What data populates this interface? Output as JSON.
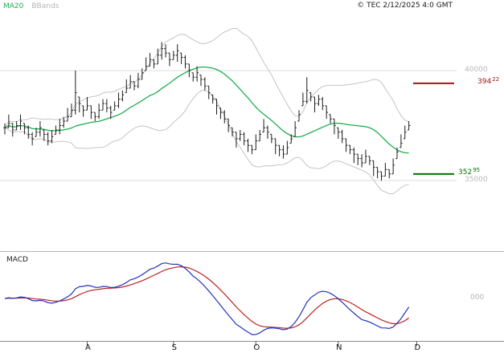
{
  "header": {
    "legend": [
      {
        "label": "MA20",
        "color": "#1fae4e"
      },
      {
        "label": "BBands",
        "color": "#b5b5b5"
      }
    ],
    "copyright": "© TEC 2/12/2025 4:0 GMT"
  },
  "price_axis": {
    "gridline_labels": [
      {
        "text": "40000",
        "value": 400.0
      },
      {
        "text": "35000",
        "value": 350.0
      }
    ],
    "levels": [
      {
        "name": "upper-level",
        "int": "394",
        "dec": "22",
        "value": 394.22,
        "color": "#aa1111"
      },
      {
        "name": "lower-level",
        "int": "352",
        "dec": "95",
        "value": 352.95,
        "color": "#007700"
      }
    ]
  },
  "macd_panel": {
    "label": "MACD",
    "zero_label": "000"
  },
  "x_axis": {
    "ticks": [
      {
        "label": "A",
        "index": 21
      },
      {
        "label": "S",
        "index": 43
      },
      {
        "label": "O",
        "index": 64
      },
      {
        "label": "N",
        "index": 85
      },
      {
        "label": "D",
        "index": 105
      }
    ]
  },
  "colors": {
    "bar": "#1c1c1c",
    "ma20": "#1fae4e",
    "bollinger": "#c4c4c4",
    "gridline": "#dcdcdc",
    "macd_line": "#2233bb",
    "macd_signal": "#bb2222",
    "panel_border": "#b3b3b3",
    "axis_line": "#8a8a8a",
    "tick": "#555555"
  },
  "chart_data": [
    {
      "type": "ohlc",
      "title": "",
      "xlabel": "",
      "ylabel": "",
      "y_gridlines": [
        400.0,
        350.0
      ],
      "y_gridline_labels": [
        "40000",
        "35000"
      ],
      "levels": [
        394.22,
        352.95
      ],
      "overlays": [
        {
          "name": "MA20",
          "period": 20
        },
        {
          "name": "BBands",
          "period": 20,
          "stdev_mult": 2
        }
      ],
      "close": [
        374,
        376,
        373,
        375,
        377,
        374,
        371,
        369,
        372,
        374,
        371,
        368,
        370,
        373,
        375,
        377,
        379,
        382,
        390,
        385,
        382,
        384,
        381,
        379,
        382,
        385,
        383,
        381,
        384,
        387,
        389,
        392,
        395,
        393,
        396,
        399,
        402,
        405,
        403,
        407,
        410,
        408,
        405,
        407,
        409,
        406,
        403,
        400,
        397,
        399,
        396,
        393,
        390,
        387,
        384,
        381,
        378,
        375,
        372,
        369,
        371,
        368,
        366,
        364,
        368,
        371,
        374,
        372,
        369,
        366,
        364,
        362,
        365,
        369,
        374,
        380,
        386,
        391,
        388,
        385,
        387,
        384,
        381,
        378,
        375,
        372,
        369,
        366,
        364,
        362,
        360,
        358,
        361,
        359,
        356,
        354,
        352,
        355,
        353,
        357,
        363,
        367,
        372,
        375
      ],
      "high": [
        376,
        380,
        376,
        377,
        380,
        376,
        375,
        372,
        374,
        377,
        373,
        372,
        373,
        375,
        378,
        379,
        383,
        385,
        400,
        388,
        384,
        388,
        384,
        381,
        385,
        387,
        387,
        384,
        386,
        390,
        391,
        396,
        398,
        395,
        399,
        401,
        406,
        408,
        405,
        410,
        413,
        412,
        408,
        409,
        412,
        408,
        407,
        403,
        399,
        402,
        398,
        397,
        393,
        389,
        387,
        383,
        382,
        378,
        374,
        372,
        373,
        372,
        369,
        366,
        371,
        373,
        378,
        375,
        371,
        369,
        366,
        366,
        368,
        371,
        377,
        382,
        390,
        397,
        390,
        388,
        389,
        388,
        384,
        380,
        378,
        374,
        373,
        369,
        366,
        365,
        362,
        362,
        364,
        361,
        359,
        356,
        354,
        358,
        355,
        360,
        365,
        371,
        375,
        377
      ],
      "low": [
        371,
        374,
        370,
        373,
        373,
        371,
        369,
        366,
        370,
        370,
        368,
        366,
        367,
        371,
        371,
        374,
        377,
        379,
        380,
        381,
        379,
        382,
        378,
        377,
        378,
        382,
        381,
        378,
        382,
        383,
        386,
        390,
        392,
        391,
        392,
        396,
        400,
        402,
        401,
        403,
        405,
        406,
        402,
        405,
        404,
        403,
        401,
        397,
        395,
        395,
        393,
        391,
        387,
        385,
        380,
        378,
        376,
        372,
        370,
        365,
        368,
        366,
        363,
        362,
        364,
        368,
        372,
        369,
        367,
        362,
        361,
        360,
        362,
        367,
        370,
        377,
        384,
        385,
        386,
        381,
        384,
        382,
        378,
        376,
        371,
        369,
        367,
        363,
        362,
        358,
        357,
        356,
        358,
        357,
        352,
        351,
        350,
        352,
        351,
        353,
        360,
        365,
        369,
        373
      ]
    },
    {
      "type": "line",
      "title": "MACD",
      "series": [
        {
          "name": "MACD",
          "derived_from": "EMA12 - EMA26 of close"
        },
        {
          "name": "Signal",
          "derived_from": "EMA9 of MACD"
        }
      ],
      "params": {
        "fast": 12,
        "slow": 26,
        "signal": 9
      },
      "zero_label": "000"
    }
  ]
}
